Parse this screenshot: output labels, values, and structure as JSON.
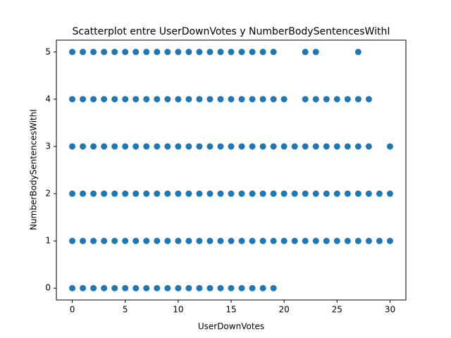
{
  "chart_data": {
    "type": "scatter",
    "title": "Scatterplot entre UserDownVotes y NumberBodySentencesWithI",
    "xlabel": "UserDownVotes",
    "ylabel": "NumberBodySentencesWithI",
    "xlim": [
      -1.5,
      31.5
    ],
    "ylim": [
      -0.25,
      5.25
    ],
    "xticks": [
      0,
      5,
      10,
      15,
      20,
      25,
      30
    ],
    "yticks": [
      0,
      1,
      2,
      3,
      4,
      5
    ],
    "grid": false,
    "series": [
      {
        "color": "#1f77b4",
        "x": [
          0,
          1,
          2,
          3,
          4,
          5,
          6,
          7,
          8,
          9,
          10,
          11,
          12,
          13,
          14,
          15,
          16,
          17,
          18,
          19,
          22,
          23,
          27,
          0,
          1,
          2,
          3,
          4,
          5,
          6,
          7,
          8,
          9,
          10,
          11,
          12,
          13,
          14,
          15,
          16,
          17,
          18,
          19,
          20,
          22,
          23,
          24,
          25,
          26,
          27,
          28,
          0,
          1,
          2,
          3,
          4,
          5,
          6,
          7,
          8,
          9,
          10,
          11,
          12,
          13,
          14,
          15,
          16,
          17,
          18,
          19,
          20,
          21,
          22,
          23,
          24,
          25,
          26,
          27,
          28,
          30,
          0,
          1,
          2,
          3,
          4,
          5,
          6,
          7,
          8,
          9,
          10,
          11,
          12,
          13,
          14,
          15,
          16,
          17,
          18,
          19,
          20,
          21,
          22,
          23,
          24,
          25,
          26,
          27,
          28,
          29,
          30,
          0,
          1,
          2,
          3,
          4,
          5,
          6,
          7,
          8,
          9,
          10,
          11,
          12,
          13,
          14,
          15,
          16,
          17,
          18,
          19,
          20,
          21,
          22,
          23,
          24,
          25,
          26,
          27,
          28,
          29,
          30,
          0,
          1,
          2,
          3,
          4,
          5,
          6,
          7,
          8,
          9,
          10,
          11,
          12,
          13,
          14,
          15,
          16,
          17,
          18,
          19
        ],
        "y": [
          5,
          5,
          5,
          5,
          5,
          5,
          5,
          5,
          5,
          5,
          5,
          5,
          5,
          5,
          5,
          5,
          5,
          5,
          5,
          5,
          5,
          5,
          5,
          4,
          4,
          4,
          4,
          4,
          4,
          4,
          4,
          4,
          4,
          4,
          4,
          4,
          4,
          4,
          4,
          4,
          4,
          4,
          4,
          4,
          4,
          4,
          4,
          4,
          4,
          4,
          4,
          3,
          3,
          3,
          3,
          3,
          3,
          3,
          3,
          3,
          3,
          3,
          3,
          3,
          3,
          3,
          3,
          3,
          3,
          3,
          3,
          3,
          3,
          3,
          3,
          3,
          3,
          3,
          3,
          3,
          3,
          2,
          2,
          2,
          2,
          2,
          2,
          2,
          2,
          2,
          2,
          2,
          2,
          2,
          2,
          2,
          2,
          2,
          2,
          2,
          2,
          2,
          2,
          2,
          2,
          2,
          2,
          2,
          2,
          2,
          2,
          2,
          1,
          1,
          1,
          1,
          1,
          1,
          1,
          1,
          1,
          1,
          1,
          1,
          1,
          1,
          1,
          1,
          1,
          1,
          1,
          1,
          1,
          1,
          1,
          1,
          1,
          1,
          1,
          1,
          1,
          1,
          1,
          0,
          0,
          0,
          0,
          0,
          0,
          0,
          0,
          0,
          0,
          0,
          0,
          0,
          0,
          0,
          0,
          0,
          0,
          0,
          0
        ]
      }
    ]
  }
}
